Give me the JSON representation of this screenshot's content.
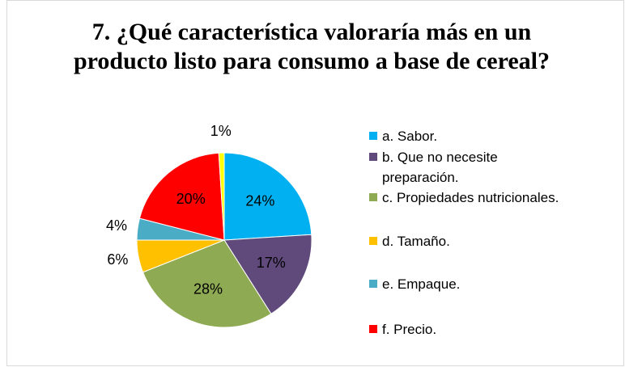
{
  "chart_data": {
    "type": "pie",
    "title": "7. ¿Qué característica valoraría más en un producto listo para consumo a base de cereal?",
    "categories": [
      "a. Sabor.",
      "b. Que no necesite preparación.",
      "c. Propiedades nutricionales.",
      "d. Tamaño.",
      "e. Empaque.",
      "f. Precio.",
      null
    ],
    "values": [
      24,
      17,
      28,
      6,
      4,
      20,
      1
    ],
    "value_labels": [
      "24%",
      "17%",
      "28%",
      "6%",
      "4%",
      "20%",
      "1%"
    ],
    "colors": [
      "#00b0f0",
      "#604a7b",
      "#8eaa52",
      "#ffc000",
      "#4bacc6",
      "#ff0000",
      "#ffff00"
    ],
    "legend": "right"
  }
}
